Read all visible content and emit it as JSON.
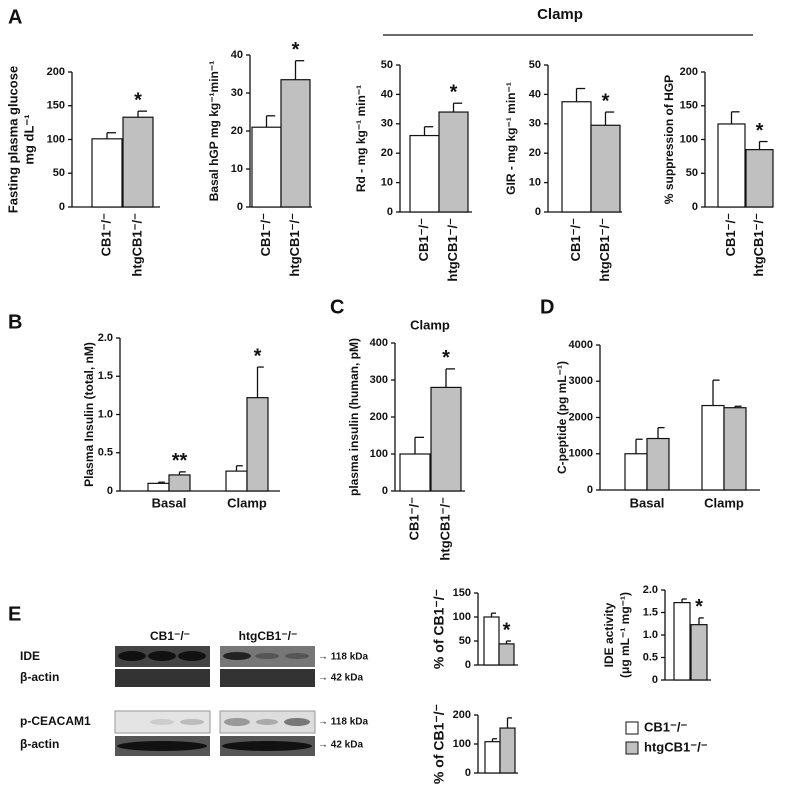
{
  "panels": [
    "A",
    "B",
    "C",
    "D",
    "E"
  ],
  "clamp_header": "Clamp",
  "blot": {
    "columns": [
      "CB1⁻/⁻",
      "htgCB1⁻/⁻"
    ],
    "rows": [
      "IDE",
      "β-actin",
      "p-CEACAM1",
      "β-actin"
    ],
    "sizes": [
      "→ 118 kDa",
      "→ 42 kDa",
      "→ 118 kDa",
      "→ 42 kDa"
    ]
  },
  "legend": [
    {
      "name": "CB1⁻/⁻",
      "color": "#ffffff"
    },
    {
      "name": "htgCB1⁻/⁻",
      "color": "#c0c0c0"
    }
  ],
  "chart_data": [
    {
      "type": "bar",
      "ylabel": [
        "Fasting plasma glucose",
        "mg dL⁻¹"
      ],
      "categories": [
        "CB1⁻/⁻",
        "htgCB1⁻/⁻"
      ],
      "values": [
        101,
        133
      ],
      "errors": [
        9,
        9
      ],
      "significance": [
        null,
        "*"
      ],
      "colors": [
        "#ffffff",
        "#c0c0c0"
      ],
      "ylim": [
        0,
        200
      ],
      "yticks": [
        0,
        50,
        100,
        150,
        200
      ]
    },
    {
      "type": "bar",
      "ylabel": [
        "Basal hGP mg kg⁻¹min⁻¹"
      ],
      "categories": [
        "CB1⁻/⁻",
        "htgCB1⁻/⁻"
      ],
      "values": [
        21,
        33.5
      ],
      "errors": [
        3,
        5
      ],
      "significance": [
        null,
        "*"
      ],
      "colors": [
        "#ffffff",
        "#c0c0c0"
      ],
      "ylim": [
        0,
        40
      ],
      "yticks": [
        0,
        10,
        20,
        30,
        40
      ]
    },
    {
      "type": "bar",
      "ylabel": [
        "Rd - mg kg⁻¹ min⁻¹"
      ],
      "categories": [
        "CB1⁻/⁻",
        "htgCB1⁻/⁻"
      ],
      "values": [
        26,
        34
      ],
      "errors": [
        3,
        3
      ],
      "significance": [
        null,
        "*"
      ],
      "colors": [
        "#ffffff",
        "#c0c0c0"
      ],
      "ylim": [
        0,
        50
      ],
      "yticks": [
        0,
        10,
        20,
        30,
        40,
        50
      ]
    },
    {
      "type": "bar",
      "ylabel": [
        "GIR - mg kg⁻¹ min⁻¹"
      ],
      "categories": [
        "CB1⁻/⁻",
        "htgCB1⁻/⁻"
      ],
      "values": [
        37.5,
        29.5
      ],
      "errors": [
        4.5,
        4.5
      ],
      "significance": [
        null,
        "*"
      ],
      "colors": [
        "#ffffff",
        "#c0c0c0"
      ],
      "ylim": [
        0,
        50
      ],
      "yticks": [
        0,
        10,
        20,
        30,
        40,
        50
      ]
    },
    {
      "type": "bar",
      "ylabel": [
        "% suppression of HGP"
      ],
      "categories": [
        "CB1⁻/⁻",
        "htgCB1⁻/⁻"
      ],
      "values": [
        123,
        85
      ],
      "errors": [
        18,
        12
      ],
      "significance": [
        null,
        "*"
      ],
      "colors": [
        "#ffffff",
        "#c0c0c0"
      ],
      "ylim": [
        0,
        200
      ],
      "yticks": [
        0,
        50,
        100,
        150,
        200
      ]
    },
    {
      "type": "bar",
      "ylabel": [
        "Plasma Insulin (total, nM)"
      ],
      "categories": [
        "Basal",
        "Clamp"
      ],
      "series": [
        {
          "color": "#ffffff",
          "values": [
            0.1,
            0.26
          ],
          "errors": [
            0.015,
            0.07
          ],
          "significance": [
            null,
            null
          ]
        },
        {
          "color": "#c0c0c0",
          "values": [
            0.21,
            1.22
          ],
          "errors": [
            0.04,
            0.4
          ],
          "significance": [
            "**",
            "*"
          ]
        }
      ],
      "ylim": [
        0,
        2
      ],
      "yticks": [
        0,
        0.5,
        {
          "value": 1,
          "label": "1.0"
        },
        1.5,
        {
          "value": 2,
          "label": "2.0"
        }
      ]
    },
    {
      "type": "bar",
      "title": "Clamp",
      "ylabel": [
        "plasma insulin (human, pM)"
      ],
      "categories": [
        "CB1⁻/⁻",
        "htgCB1⁻/⁻"
      ],
      "values": [
        100,
        280
      ],
      "errors": [
        45,
        50
      ],
      "significance": [
        null,
        "*"
      ],
      "colors": [
        "#ffffff",
        "#c0c0c0"
      ],
      "ylim": [
        0,
        400
      ],
      "yticks": [
        0,
        100,
        200,
        300,
        400
      ]
    },
    {
      "type": "bar",
      "ylabel": [
        "C-peptide (pg mL⁻¹)"
      ],
      "categories": [
        "Basal",
        "Clamp"
      ],
      "series": [
        {
          "color": "#ffffff",
          "values": [
            1000,
            2330
          ],
          "errors": [
            400,
            700
          ],
          "significance": [
            null,
            null
          ]
        },
        {
          "color": "#c0c0c0",
          "values": [
            1420,
            2270
          ],
          "errors": [
            300,
            40
          ],
          "significance": [
            null,
            null
          ]
        }
      ],
      "ylim": [
        0,
        4000
      ],
      "yticks": [
        0,
        1000,
        2000,
        3000,
        4000
      ]
    },
    {
      "type": "bar",
      "ylabel": [
        "% of CB1⁻/⁻"
      ],
      "categories": [
        null,
        null
      ],
      "values": [
        100,
        44
      ],
      "errors": [
        8,
        6
      ],
      "significance": [
        null,
        "*"
      ],
      "colors": [
        "#ffffff",
        "#c0c0c0"
      ],
      "ylim": [
        0,
        150
      ],
      "yticks": [
        0,
        50,
        100,
        150
      ]
    },
    {
      "type": "bar",
      "ylabel": [
        "% of CB1⁻/⁻"
      ],
      "categories": [
        null,
        null
      ],
      "values": [
        108,
        155
      ],
      "errors": [
        10,
        35
      ],
      "significance": [
        null,
        null
      ],
      "colors": [
        "#ffffff",
        "#c0c0c0"
      ],
      "ylim": [
        0,
        200
      ],
      "yticks": [
        0,
        100,
        200
      ]
    },
    {
      "type": "bar",
      "ylabel": [
        "IDE activity",
        "(μg mL⁻¹ mg⁻¹)"
      ],
      "categories": [
        null,
        null
      ],
      "values": [
        1.72,
        1.23
      ],
      "errors": [
        0.08,
        0.15
      ],
      "significance": [
        null,
        "*"
      ],
      "colors": [
        "#ffffff",
        "#c0c0c0"
      ],
      "ylim": [
        0,
        2
      ],
      "yticks": [
        0,
        0.5,
        {
          "value": 1,
          "label": "1.0"
        },
        1.5,
        {
          "value": 2,
          "label": "2.0"
        }
      ]
    }
  ]
}
